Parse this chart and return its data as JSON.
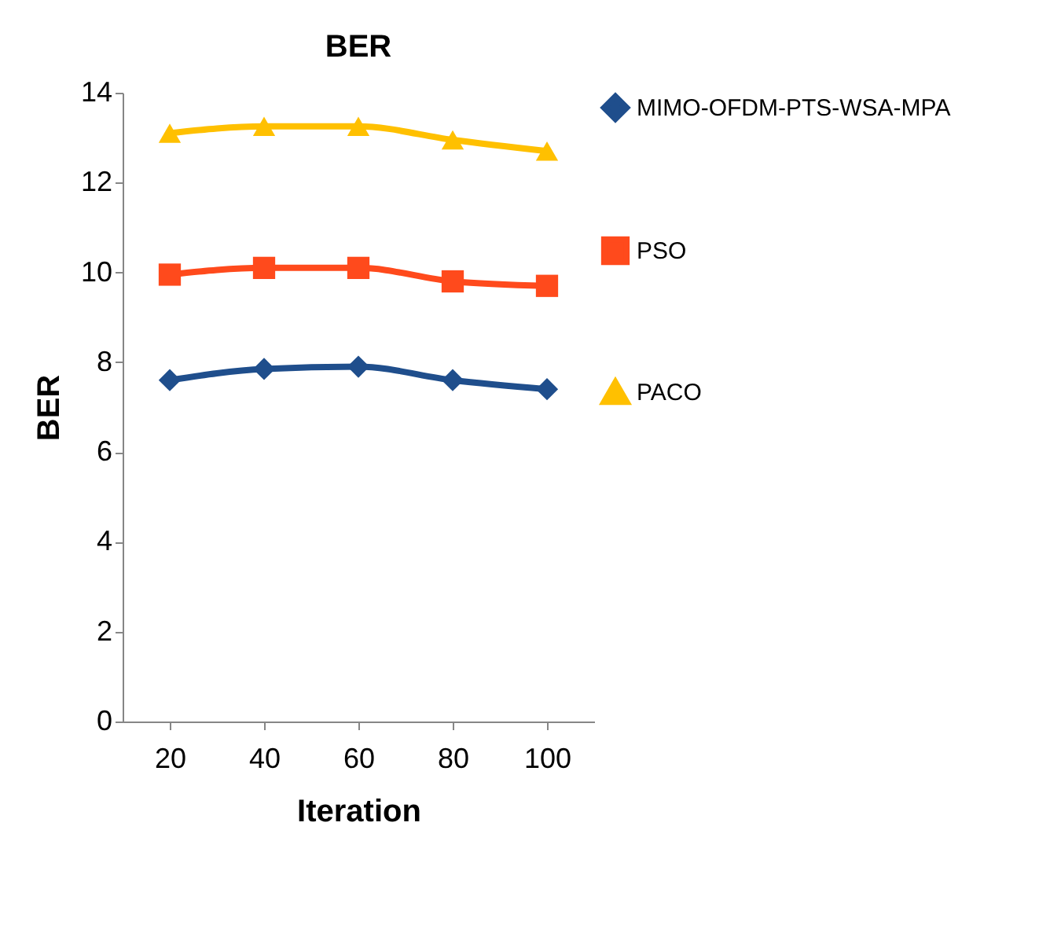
{
  "chart_data": {
    "type": "line",
    "title": "BER",
    "xlabel": "Iteration",
    "ylabel": "BER",
    "categories": [
      "20",
      "40",
      "60",
      "80",
      "100"
    ],
    "series": [
      {
        "name": "MIMO-OFDM-PTS-WSA-MPA",
        "color": "#1f4e8c",
        "marker": "diamond",
        "values": [
          7.6,
          7.85,
          7.9,
          7.6,
          7.4
        ]
      },
      {
        "name": "PSO",
        "color": "#ff4a1c",
        "marker": "square",
        "values": [
          9.95,
          10.1,
          10.1,
          9.8,
          9.7
        ]
      },
      {
        "name": "PACO",
        "color": "#ffc000",
        "marker": "triangle",
        "values": [
          13.1,
          13.25,
          13.25,
          12.95,
          12.7
        ]
      }
    ],
    "ylim": [
      0,
      14
    ],
    "yticks": [
      0,
      2,
      4,
      6,
      8,
      10,
      12,
      14
    ],
    "grid": false,
    "legend": "right"
  }
}
